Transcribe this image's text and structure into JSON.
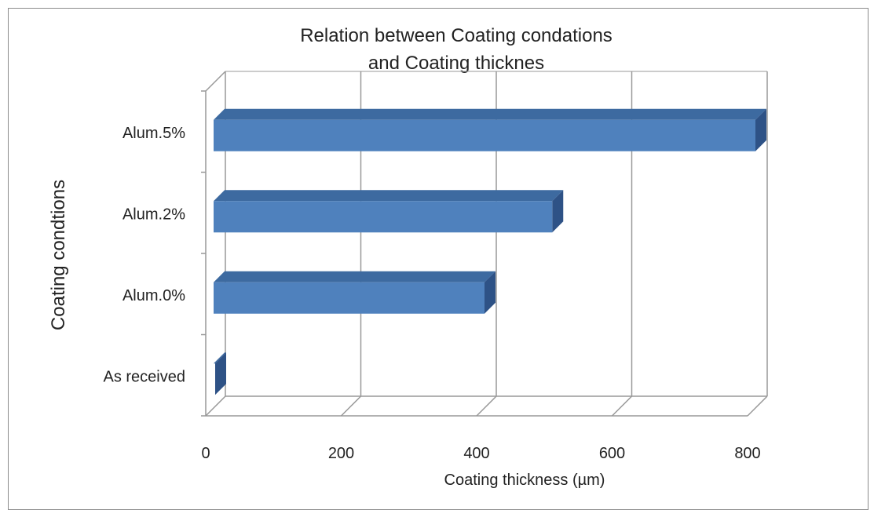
{
  "chart_data": {
    "type": "bar",
    "orientation": "horizontal",
    "style": "3d",
    "title_lines": [
      "Relation between Coating condations",
      "and Coating thicknes"
    ],
    "xlabel": "Coating thickness (µm)",
    "ylabel": "Coating condtions",
    "categories": [
      "As received",
      "Alum.0%",
      "Alum.2%",
      "Alum.5%"
    ],
    "values": [
      0,
      400,
      500,
      800
    ],
    "xlim": [
      0,
      800
    ],
    "xticks": [
      "0",
      "200",
      "400",
      "600",
      "800"
    ],
    "grid": true,
    "legend": "none",
    "colors": {
      "bar_front": "#4f81bd",
      "bar_top": "#3d6aa0",
      "bar_side": "#2e5286",
      "grid": "#999999"
    }
  }
}
